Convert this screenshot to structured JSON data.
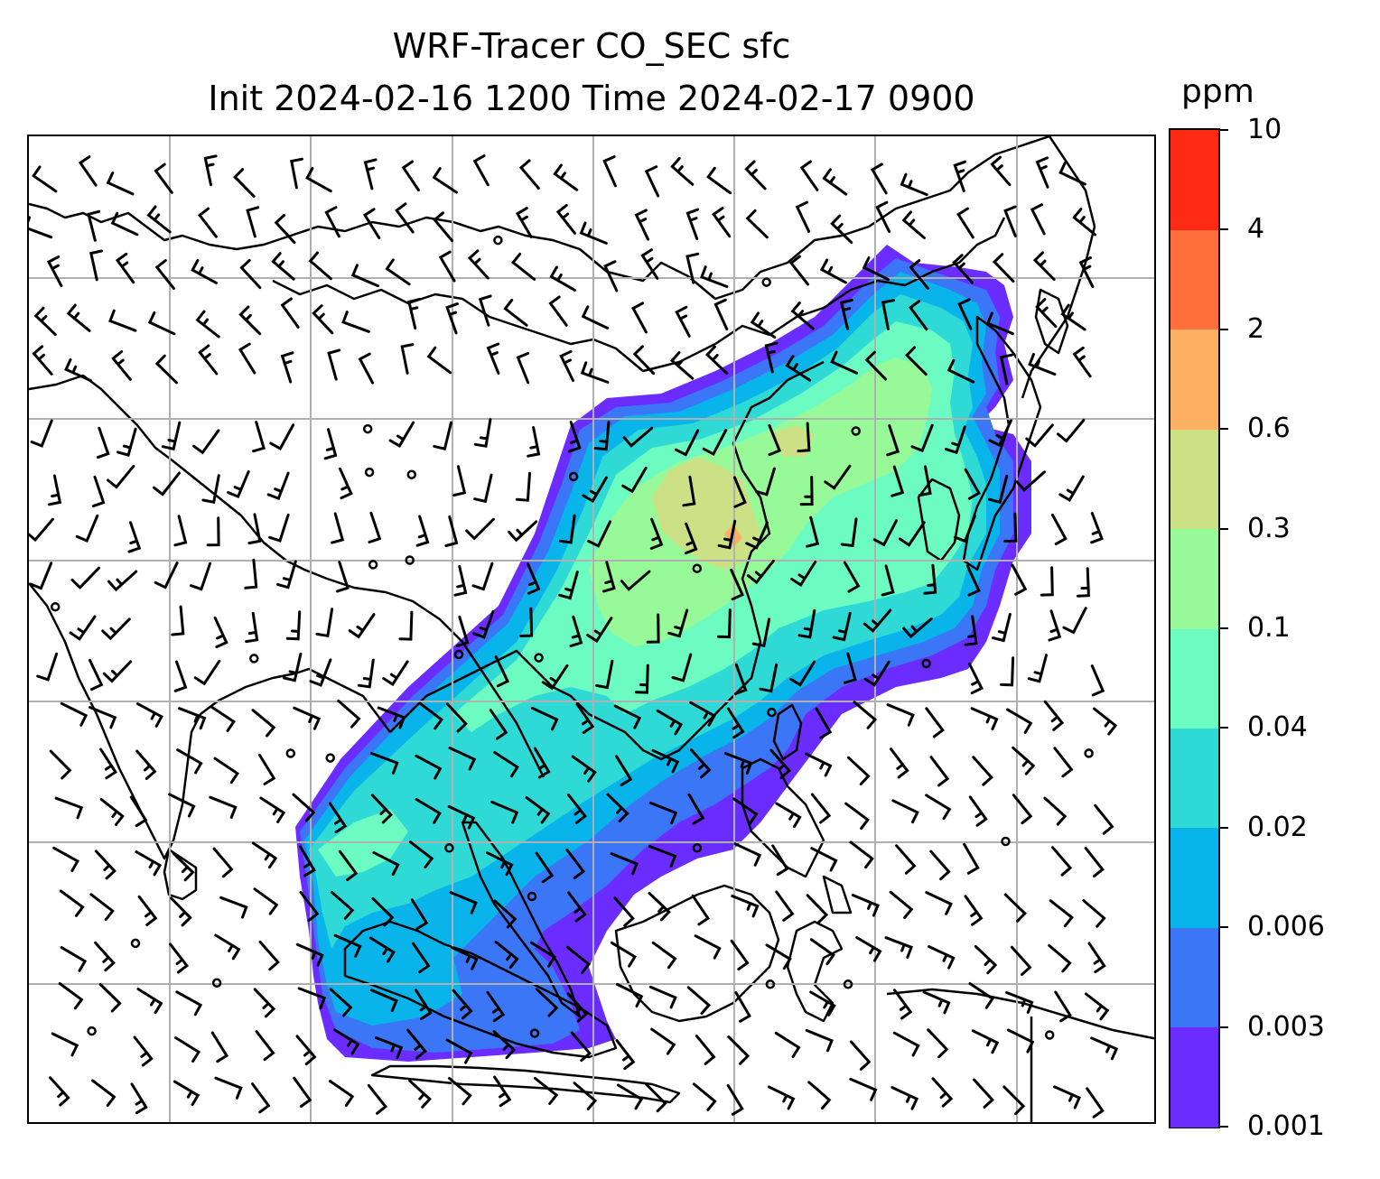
{
  "title": {
    "line1": "WRF-Tracer CO_SEC sfc",
    "line2": "Init 2024-02-16 1200 Time 2024-02-17 0900"
  },
  "colorbar": {
    "unit": "ppm",
    "levels": [
      "0.001",
      "0.003",
      "0.006",
      "0.02",
      "0.04",
      "0.1",
      "0.3",
      "0.6",
      "2",
      "4",
      "10"
    ],
    "colors": [
      "#6a2cff",
      "#3a76f5",
      "#08b4ea",
      "#2fdad6",
      "#6cfcc2",
      "#98f998",
      "#cce185",
      "#feb062",
      "#ff6e3b",
      "#ff2a13"
    ]
  },
  "map": {
    "colors": {
      "coastline": "#000000",
      "gridline": "#b0b0b0",
      "wind_barb": "#000000"
    },
    "layers": [
      "co-concentration-field",
      "coastlines",
      "gridlines",
      "wind-barbs"
    ]
  }
}
